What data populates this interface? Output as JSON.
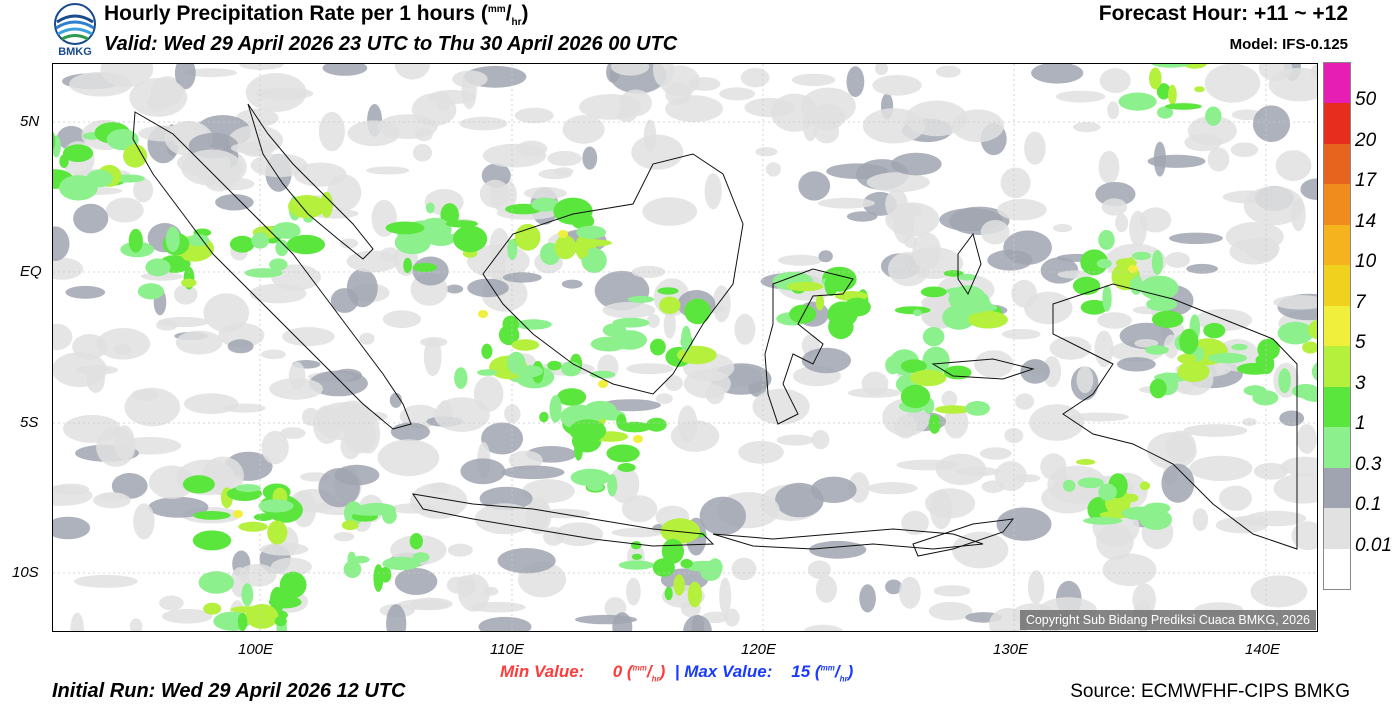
{
  "header": {
    "title_prefix": "Hourly Precipitation Rate per 1 hours (",
    "title_unit_num": "mm",
    "title_unit_slash": "/",
    "title_unit_den": "hr",
    "title_suffix": ")",
    "valid": "Valid: Wed 29 April 2026 23 UTC to Thu 30 April 2026 00 UTC",
    "forecast_hour": "Forecast Hour: +11 ~ +12",
    "model": "Model: IFS-0.125",
    "logo_text": "BMKG"
  },
  "map": {
    "lat_labels": [
      "5N",
      "EQ",
      "5S",
      "10S"
    ],
    "lon_labels": [
      "100E",
      "110E",
      "120E",
      "130E",
      "140E"
    ],
    "copyright": "Copyright Sub Bidang Prediksi Cuaca BMKG, 2026"
  },
  "colorbar": {
    "labels": [
      "50",
      "20",
      "17",
      "14",
      "10",
      "7",
      "5",
      "3",
      "1",
      "0.3",
      "0.1",
      "0.01"
    ],
    "colors": [
      "#e61eb4",
      "#e62d1e",
      "#e6641e",
      "#f08c1e",
      "#f5b41e",
      "#f0d21e",
      "#f0f03c",
      "#b4f03c",
      "#5ae63c",
      "#8cf08c",
      "#a0a4b0",
      "#e1e1e1",
      "#ffffff"
    ]
  },
  "footer": {
    "min_label": "Min Value:",
    "min_value": "0",
    "max_label": "Max Value:",
    "max_value": "15",
    "unit_num": "mm",
    "unit_slash": "/",
    "unit_den": "hr",
    "separator": "|",
    "initial_run": "Initial Run: Wed 29 April 2026 12 UTC",
    "source": "Source: ECMWFHF-CIPS BMKG"
  }
}
